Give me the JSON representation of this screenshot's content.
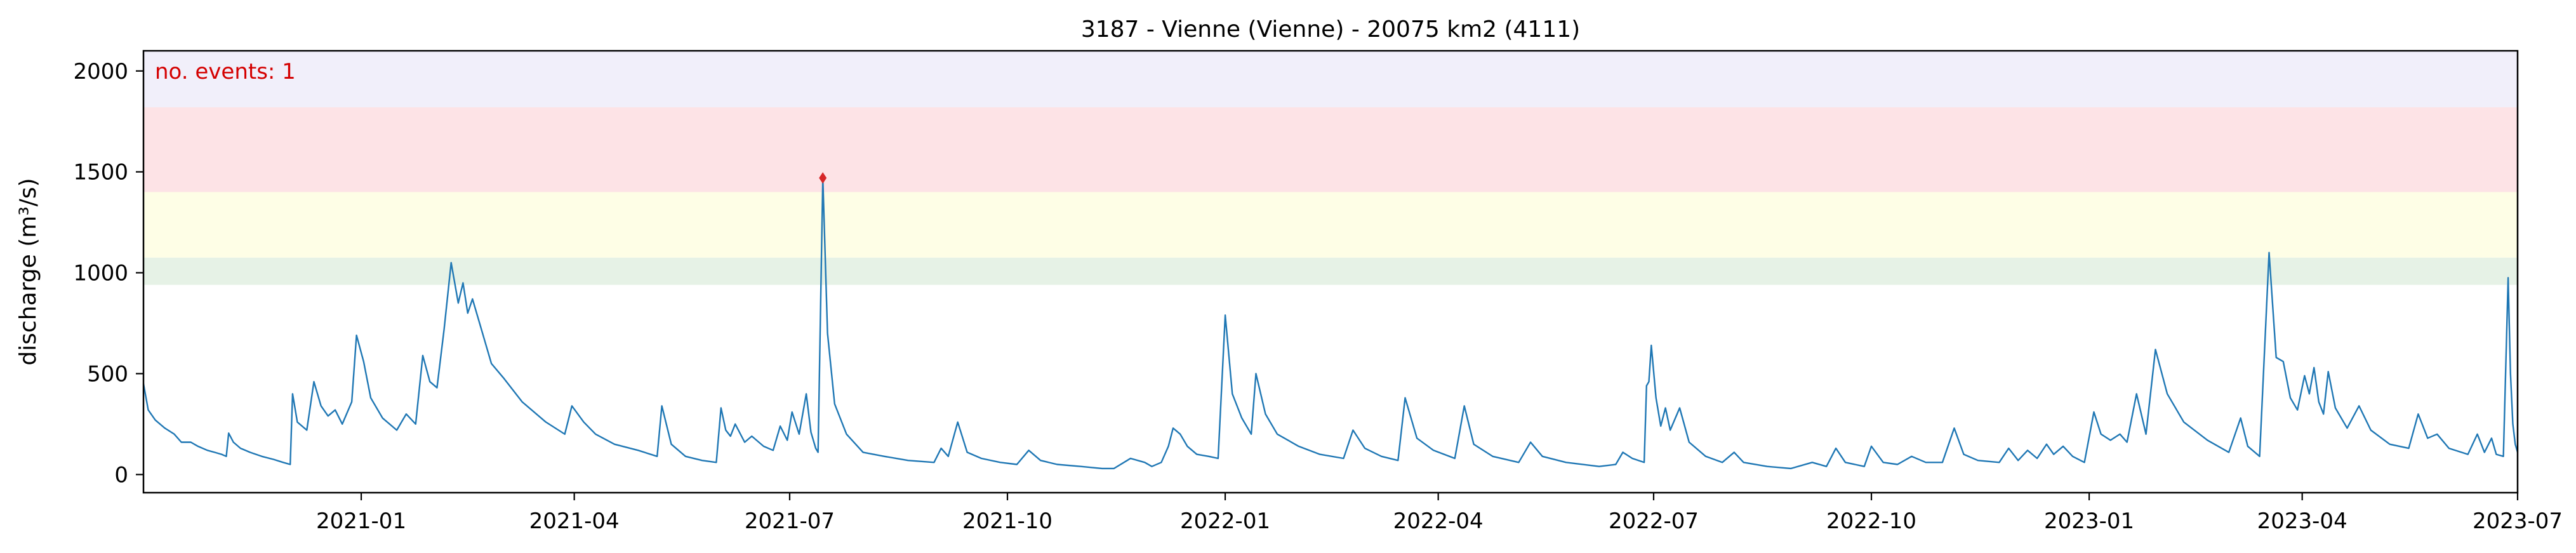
{
  "chart_data": {
    "type": "line",
    "title": "3187 - Vienne (Vienne) - 20075 km2 (4111)",
    "xlabel": "",
    "ylabel": "discharge (m³/s)",
    "xlim": [
      "2020-10-01",
      "2023-07-01"
    ],
    "ylim": [
      -90,
      2100
    ],
    "grid": false,
    "yticks": [
      0,
      500,
      1000,
      1500,
      2000
    ],
    "xticks": [
      {
        "date": "2021-01-01",
        "label": "2021-01"
      },
      {
        "date": "2021-04-01",
        "label": "2021-04"
      },
      {
        "date": "2021-07-01",
        "label": "2021-07"
      },
      {
        "date": "2021-10-01",
        "label": "2021-10"
      },
      {
        "date": "2022-01-01",
        "label": "2022-01"
      },
      {
        "date": "2022-04-01",
        "label": "2022-04"
      },
      {
        "date": "2022-07-01",
        "label": "2022-07"
      },
      {
        "date": "2022-10-01",
        "label": "2022-10"
      },
      {
        "date": "2023-01-01",
        "label": "2023-01"
      },
      {
        "date": "2023-04-01",
        "label": "2023-04"
      },
      {
        "date": "2023-07-01",
        "label": "2023-07"
      }
    ],
    "threshold_bands": [
      {
        "from": 940,
        "to": 1075,
        "color": "#e6f2e6"
      },
      {
        "from": 1075,
        "to": 1400,
        "color": "#fefee6"
      },
      {
        "from": 1400,
        "to": 1820,
        "color": "#fde3e6"
      },
      {
        "from": 1820,
        "to": 2100,
        "color": "#f1effa"
      }
    ],
    "annotation": {
      "text": "no. events: 1",
      "color": "#d40000"
    },
    "events": [
      {
        "date": "2021-07-15",
        "value": 1470,
        "color": "#d62728"
      }
    ],
    "series": [
      {
        "color": "#1f77b4",
        "points": [
          [
            "2020-10-01",
            450
          ],
          [
            "2020-10-03",
            320
          ],
          [
            "2020-10-06",
            270
          ],
          [
            "2020-10-10",
            230
          ],
          [
            "2020-10-14",
            200
          ],
          [
            "2020-10-17",
            160
          ],
          [
            "2020-10-21",
            160
          ],
          [
            "2020-10-24",
            140
          ],
          [
            "2020-10-28",
            120
          ],
          [
            "2020-10-31",
            110
          ],
          [
            "2020-11-03",
            100
          ],
          [
            "2020-11-05",
            90
          ],
          [
            "2020-11-06",
            205
          ],
          [
            "2020-11-08",
            160
          ],
          [
            "2020-11-11",
            130
          ],
          [
            "2020-11-15",
            110
          ],
          [
            "2020-11-20",
            90
          ],
          [
            "2020-11-25",
            75
          ],
          [
            "2020-11-29",
            60
          ],
          [
            "2020-12-02",
            50
          ],
          [
            "2020-12-03",
            400
          ],
          [
            "2020-12-05",
            260
          ],
          [
            "2020-12-09",
            220
          ],
          [
            "2020-12-12",
            460
          ],
          [
            "2020-12-15",
            340
          ],
          [
            "2020-12-18",
            290
          ],
          [
            "2020-12-21",
            320
          ],
          [
            "2020-12-24",
            250
          ],
          [
            "2020-12-28",
            360
          ],
          [
            "2020-12-30",
            690
          ],
          [
            "2021-01-02",
            560
          ],
          [
            "2021-01-05",
            380
          ],
          [
            "2021-01-10",
            280
          ],
          [
            "2021-01-16",
            220
          ],
          [
            "2021-01-20",
            300
          ],
          [
            "2021-01-24",
            250
          ],
          [
            "2021-01-27",
            590
          ],
          [
            "2021-01-30",
            460
          ],
          [
            "2021-02-02",
            430
          ],
          [
            "2021-02-05",
            720
          ],
          [
            "2021-02-08",
            1050
          ],
          [
            "2021-02-11",
            850
          ],
          [
            "2021-02-13",
            950
          ],
          [
            "2021-02-15",
            800
          ],
          [
            "2021-02-17",
            870
          ],
          [
            "2021-02-20",
            750
          ],
          [
            "2021-02-25",
            550
          ],
          [
            "2021-03-02",
            480
          ],
          [
            "2021-03-10",
            360
          ],
          [
            "2021-03-20",
            260
          ],
          [
            "2021-03-28",
            200
          ],
          [
            "2021-03-31",
            340
          ],
          [
            "2021-04-05",
            260
          ],
          [
            "2021-04-10",
            200
          ],
          [
            "2021-04-18",
            150
          ],
          [
            "2021-04-28",
            120
          ],
          [
            "2021-05-06",
            90
          ],
          [
            "2021-05-08",
            340
          ],
          [
            "2021-05-12",
            150
          ],
          [
            "2021-05-18",
            90
          ],
          [
            "2021-05-25",
            70
          ],
          [
            "2021-05-31",
            60
          ],
          [
            "2021-06-02",
            330
          ],
          [
            "2021-06-04",
            220
          ],
          [
            "2021-06-06",
            190
          ],
          [
            "2021-06-08",
            250
          ],
          [
            "2021-06-12",
            160
          ],
          [
            "2021-06-15",
            190
          ],
          [
            "2021-06-20",
            140
          ],
          [
            "2021-06-24",
            120
          ],
          [
            "2021-06-27",
            240
          ],
          [
            "2021-06-30",
            170
          ],
          [
            "2021-07-02",
            310
          ],
          [
            "2021-07-05",
            200
          ],
          [
            "2021-07-08",
            400
          ],
          [
            "2021-07-10",
            210
          ],
          [
            "2021-07-12",
            130
          ],
          [
            "2021-07-13",
            110
          ],
          [
            "2021-07-15",
            1470
          ],
          [
            "2021-07-17",
            700
          ],
          [
            "2021-07-20",
            350
          ],
          [
            "2021-07-25",
            200
          ],
          [
            "2021-08-01",
            110
          ],
          [
            "2021-08-10",
            90
          ],
          [
            "2021-08-20",
            70
          ],
          [
            "2021-08-31",
            60
          ],
          [
            "2021-09-03",
            130
          ],
          [
            "2021-09-06",
            90
          ],
          [
            "2021-09-10",
            260
          ],
          [
            "2021-09-14",
            110
          ],
          [
            "2021-09-20",
            80
          ],
          [
            "2021-09-28",
            60
          ],
          [
            "2021-10-05",
            50
          ],
          [
            "2021-10-10",
            120
          ],
          [
            "2021-10-15",
            70
          ],
          [
            "2021-10-22",
            50
          ],
          [
            "2021-11-01",
            40
          ],
          [
            "2021-11-10",
            30
          ],
          [
            "2021-11-15",
            30
          ],
          [
            "2021-11-22",
            80
          ],
          [
            "2021-11-28",
            60
          ],
          [
            "2021-12-01",
            40
          ],
          [
            "2021-12-05",
            60
          ],
          [
            "2021-12-08",
            140
          ],
          [
            "2021-12-10",
            230
          ],
          [
            "2021-12-13",
            200
          ],
          [
            "2021-12-16",
            140
          ],
          [
            "2021-12-20",
            100
          ],
          [
            "2021-12-25",
            90
          ],
          [
            "2021-12-29",
            80
          ],
          [
            "2022-01-01",
            790
          ],
          [
            "2022-01-04",
            400
          ],
          [
            "2022-01-08",
            280
          ],
          [
            "2022-01-12",
            200
          ],
          [
            "2022-01-14",
            500
          ],
          [
            "2022-01-18",
            300
          ],
          [
            "2022-01-23",
            200
          ],
          [
            "2022-02-01",
            140
          ],
          [
            "2022-02-10",
            100
          ],
          [
            "2022-02-20",
            80
          ],
          [
            "2022-02-24",
            220
          ],
          [
            "2022-03-01",
            130
          ],
          [
            "2022-03-08",
            90
          ],
          [
            "2022-03-15",
            70
          ],
          [
            "2022-03-18",
            380
          ],
          [
            "2022-03-23",
            180
          ],
          [
            "2022-03-30",
            120
          ],
          [
            "2022-04-08",
            80
          ],
          [
            "2022-04-12",
            340
          ],
          [
            "2022-04-16",
            150
          ],
          [
            "2022-04-24",
            90
          ],
          [
            "2022-05-05",
            60
          ],
          [
            "2022-05-10",
            160
          ],
          [
            "2022-05-15",
            90
          ],
          [
            "2022-05-25",
            60
          ],
          [
            "2022-06-08",
            40
          ],
          [
            "2022-06-15",
            50
          ],
          [
            "2022-06-18",
            110
          ],
          [
            "2022-06-22",
            80
          ],
          [
            "2022-06-27",
            60
          ],
          [
            "2022-06-28",
            440
          ],
          [
            "2022-06-29",
            460
          ],
          [
            "2022-06-30",
            640
          ],
          [
            "2022-07-02",
            380
          ],
          [
            "2022-07-04",
            240
          ],
          [
            "2022-07-06",
            330
          ],
          [
            "2022-07-08",
            220
          ],
          [
            "2022-07-12",
            330
          ],
          [
            "2022-07-16",
            160
          ],
          [
            "2022-07-23",
            90
          ],
          [
            "2022-07-30",
            60
          ],
          [
            "2022-08-04",
            110
          ],
          [
            "2022-08-08",
            60
          ],
          [
            "2022-08-18",
            40
          ],
          [
            "2022-08-28",
            30
          ],
          [
            "2022-09-06",
            60
          ],
          [
            "2022-09-12",
            40
          ],
          [
            "2022-09-16",
            130
          ],
          [
            "2022-09-20",
            60
          ],
          [
            "2022-09-28",
            40
          ],
          [
            "2022-10-01",
            140
          ],
          [
            "2022-10-06",
            60
          ],
          [
            "2022-10-12",
            50
          ],
          [
            "2022-10-18",
            90
          ],
          [
            "2022-10-24",
            60
          ],
          [
            "2022-10-31",
            60
          ],
          [
            "2022-11-05",
            230
          ],
          [
            "2022-11-09",
            100
          ],
          [
            "2022-11-15",
            70
          ],
          [
            "2022-11-24",
            60
          ],
          [
            "2022-11-28",
            130
          ],
          [
            "2022-12-02",
            70
          ],
          [
            "2022-12-06",
            120
          ],
          [
            "2022-12-10",
            80
          ],
          [
            "2022-12-14",
            150
          ],
          [
            "2022-12-17",
            100
          ],
          [
            "2022-12-21",
            140
          ],
          [
            "2022-12-25",
            90
          ],
          [
            "2022-12-30",
            60
          ],
          [
            "2023-01-03",
            310
          ],
          [
            "2023-01-06",
            200
          ],
          [
            "2023-01-10",
            170
          ],
          [
            "2023-01-14",
            200
          ],
          [
            "2023-01-17",
            160
          ],
          [
            "2023-01-21",
            400
          ],
          [
            "2023-01-25",
            200
          ],
          [
            "2023-01-29",
            620
          ],
          [
            "2023-02-03",
            400
          ],
          [
            "2023-02-10",
            260
          ],
          [
            "2023-02-20",
            170
          ],
          [
            "2023-03-01",
            110
          ],
          [
            "2023-03-06",
            280
          ],
          [
            "2023-03-09",
            140
          ],
          [
            "2023-03-14",
            90
          ],
          [
            "2023-03-18",
            1100
          ],
          [
            "2023-03-21",
            580
          ],
          [
            "2023-03-24",
            560
          ],
          [
            "2023-03-27",
            380
          ],
          [
            "2023-03-30",
            320
          ],
          [
            "2023-04-02",
            490
          ],
          [
            "2023-04-04",
            400
          ],
          [
            "2023-04-06",
            530
          ],
          [
            "2023-04-08",
            360
          ],
          [
            "2023-04-10",
            300
          ],
          [
            "2023-04-12",
            510
          ],
          [
            "2023-04-15",
            330
          ],
          [
            "2023-04-20",
            230
          ],
          [
            "2023-04-25",
            340
          ],
          [
            "2023-04-30",
            220
          ],
          [
            "2023-05-08",
            150
          ],
          [
            "2023-05-16",
            130
          ],
          [
            "2023-05-20",
            300
          ],
          [
            "2023-05-24",
            180
          ],
          [
            "2023-05-28",
            200
          ],
          [
            "2023-06-02",
            130
          ],
          [
            "2023-06-10",
            100
          ],
          [
            "2023-06-14",
            200
          ],
          [
            "2023-06-17",
            110
          ],
          [
            "2023-06-20",
            180
          ],
          [
            "2023-06-22",
            100
          ],
          [
            "2023-06-25",
            90
          ],
          [
            "2023-06-27",
            975
          ],
          [
            "2023-06-28",
            500
          ],
          [
            "2023-06-29",
            250
          ],
          [
            "2023-06-30",
            150
          ],
          [
            "2023-07-01",
            110
          ]
        ]
      }
    ]
  }
}
